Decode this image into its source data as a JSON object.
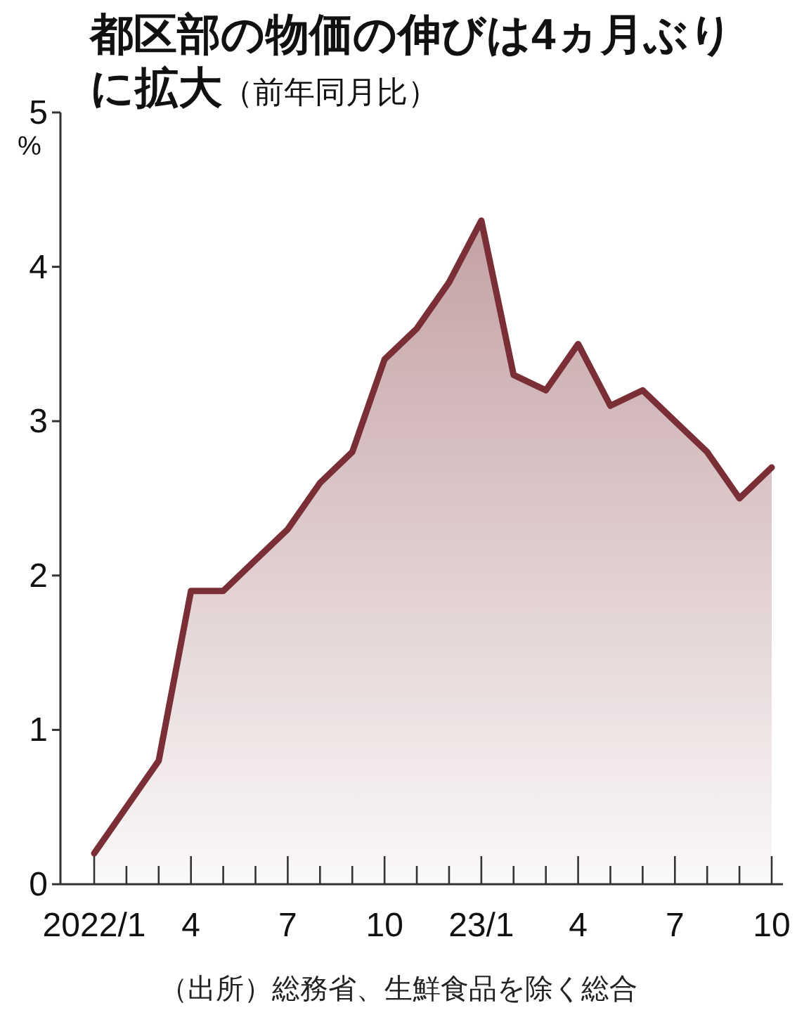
{
  "chart_data": {
    "type": "area",
    "title": "都区部の物価の伸びは4ヵ月ぶりに拡大",
    "subtitle": "（前年同月比）",
    "ylabel": "%",
    "categories": [
      "2022/1",
      null,
      null,
      "4",
      null,
      null,
      "7",
      null,
      null,
      "10",
      null,
      null,
      "23/1",
      null,
      null,
      "4",
      null,
      null,
      "7",
      null,
      null,
      "10"
    ],
    "values": [
      0.2,
      0.5,
      0.8,
      1.9,
      1.9,
      2.1,
      2.3,
      2.6,
      2.8,
      3.4,
      3.6,
      3.9,
      4.3,
      3.3,
      3.2,
      3.5,
      3.1,
      3.2,
      3.0,
      2.8,
      2.5,
      2.7
    ],
    "color": "#7a2e35",
    "ylim": [
      0,
      5
    ],
    "yticks": [
      0,
      1,
      2,
      3,
      4,
      5
    ],
    "grid": false,
    "annotations": [
      "（出所）総務省、生鮮食品を除く総合"
    ]
  }
}
